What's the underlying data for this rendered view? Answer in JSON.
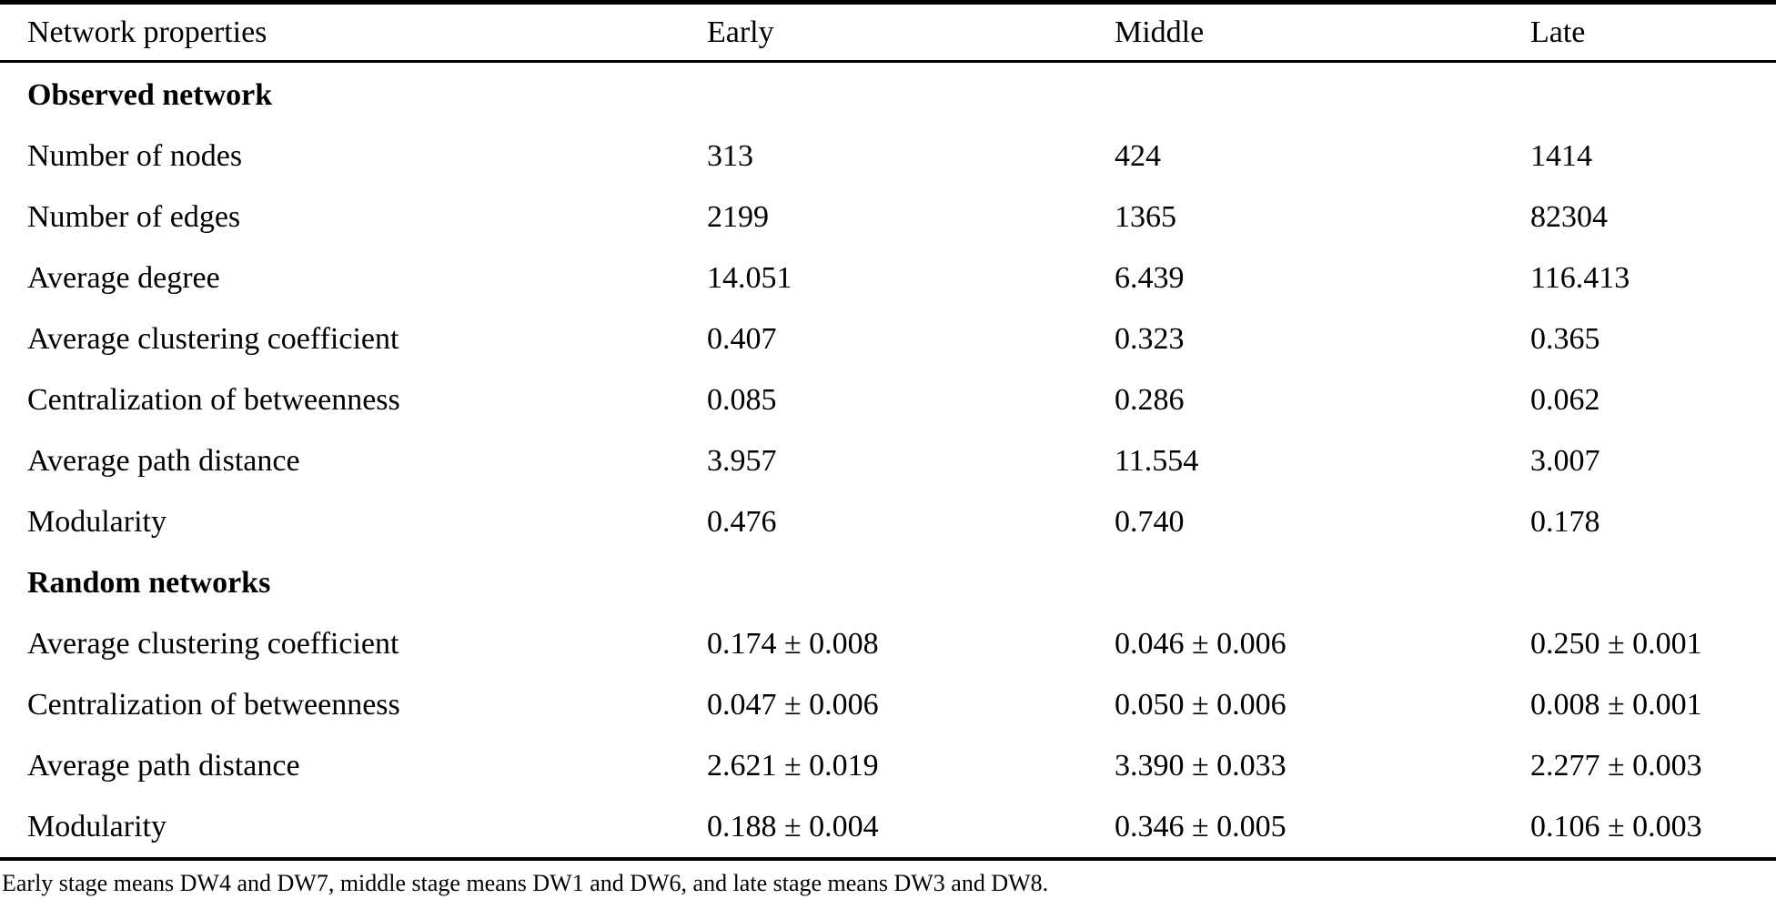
{
  "table": {
    "columns": {
      "property": "Network properties",
      "early": "Early",
      "middle": "Middle",
      "late": "Late"
    },
    "sections": [
      {
        "title": "Observed network",
        "rows": [
          {
            "label": "Number of nodes",
            "early": "313",
            "middle": "424",
            "late": "1414"
          },
          {
            "label": "Number of edges",
            "early": "2199",
            "middle": "1365",
            "late": "82304"
          },
          {
            "label": "Average degree",
            "early": "14.051",
            "middle": "6.439",
            "late": "116.413"
          },
          {
            "label": "Average clustering coefficient",
            "early": "0.407",
            "middle": "0.323",
            "late": "0.365"
          },
          {
            "label": "Centralization of betweenness",
            "early": "0.085",
            "middle": "0.286",
            "late": "0.062"
          },
          {
            "label": "Average path distance",
            "early": "3.957",
            "middle": "11.554",
            "late": "3.007"
          },
          {
            "label": "Modularity",
            "early": "0.476",
            "middle": "0.740",
            "late": "0.178"
          }
        ]
      },
      {
        "title": "Random networks",
        "rows": [
          {
            "label": "Average clustering coefficient",
            "early": "0.174 ± 0.008",
            "middle": "0.046 ± 0.006",
            "late": "0.250 ± 0.001"
          },
          {
            "label": "Centralization of betweenness",
            "early": "0.047 ± 0.006",
            "middle": "0.050 ± 0.006",
            "late": "0.008 ± 0.001"
          },
          {
            "label": "Average path distance",
            "early": "2.621 ± 0.019",
            "middle": "3.390 ± 0.033",
            "late": "2.277 ± 0.003"
          },
          {
            "label": "Modularity",
            "early": "0.188 ± 0.004",
            "middle": "0.346 ± 0.005",
            "late": "0.106 ± 0.003"
          }
        ]
      }
    ],
    "footnote": "Early stage means DW4 and DW7, middle stage means DW1 and DW6, and late stage means DW3 and DW8."
  }
}
